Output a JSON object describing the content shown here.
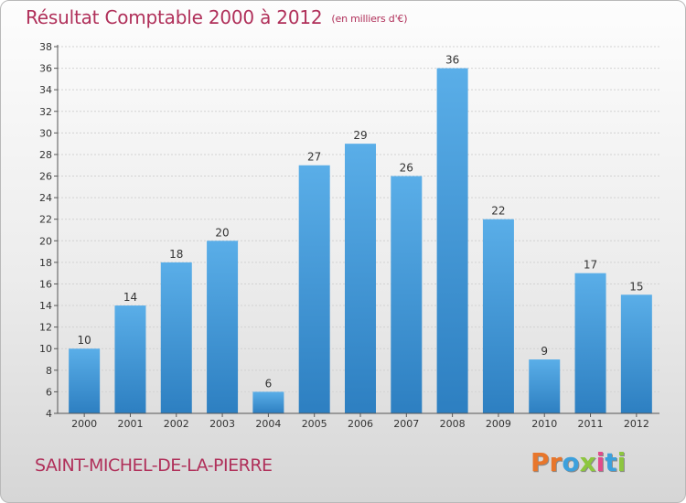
{
  "header": {
    "title": "Résultat Comptable 2000 à 2012",
    "unit": "(en milliers d'€)"
  },
  "footer": {
    "city": "SAINT-MICHEL-DE-LA-PIERRE",
    "logo_letters": [
      "P",
      "r",
      "o",
      "x",
      "i",
      "t",
      "i"
    ],
    "logo_colors": [
      "#e8762b",
      "#e8762b",
      "#3ca0dc",
      "#8dc63f",
      "#e14a8b",
      "#3ca0dc",
      "#8dc63f"
    ]
  },
  "chart_data": {
    "type": "bar",
    "title": "Résultat Comptable 2000 à 2012",
    "subtitle": "(en milliers d'€)",
    "xlabel": "",
    "ylabel": "",
    "categories": [
      "2000",
      "2001",
      "2002",
      "2003",
      "2004",
      "2005",
      "2006",
      "2007",
      "2008",
      "2009",
      "2010",
      "2011",
      "2012"
    ],
    "values": [
      10,
      14,
      18,
      20,
      6,
      27,
      29,
      26,
      36,
      22,
      9,
      17,
      15
    ],
    "ylim": [
      4,
      38
    ],
    "yticks": [
      4,
      6,
      8,
      10,
      12,
      14,
      16,
      18,
      20,
      22,
      24,
      26,
      28,
      30,
      32,
      34,
      36,
      38
    ],
    "grid": true,
    "bar_color": "#4fa3e0"
  }
}
